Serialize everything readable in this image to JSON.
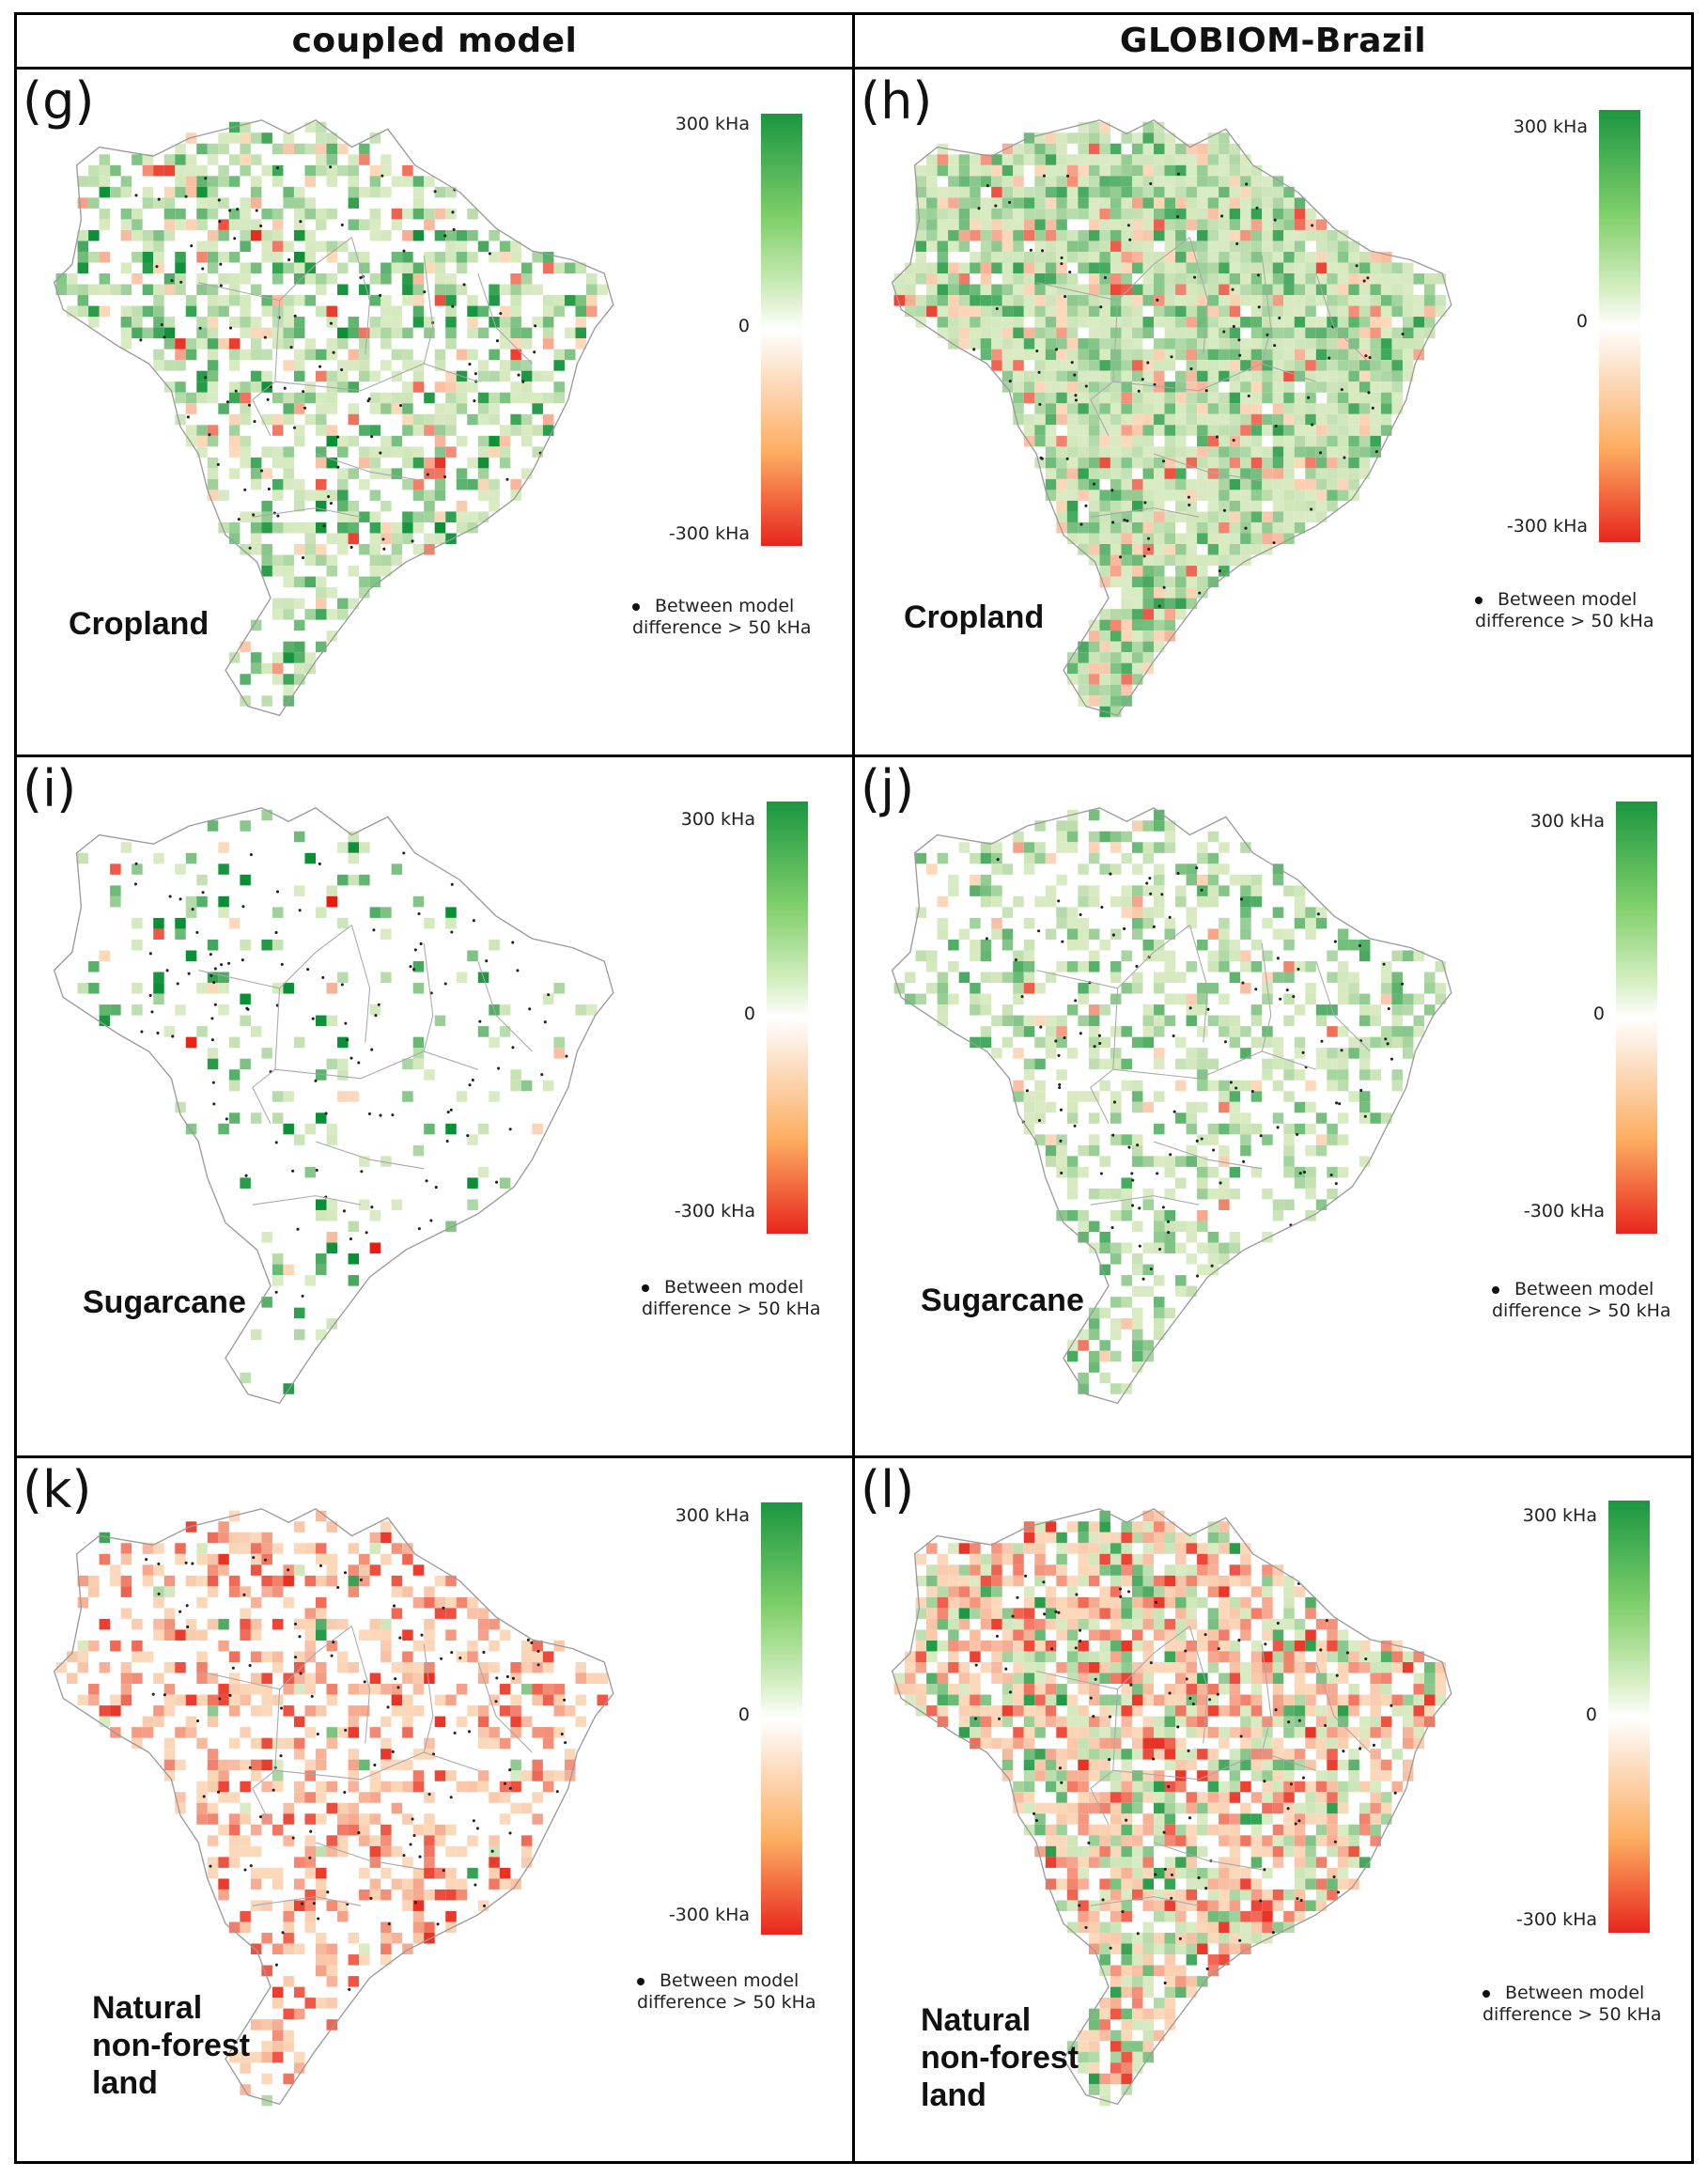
{
  "columns": [
    "coupled model",
    "GLOBIOM-Brazil"
  ],
  "colorbar": {
    "max_label": "300 kHa",
    "mid_label": "0",
    "min_label": "-300 kHa",
    "colors": [
      "#1a9641",
      "#ffffff",
      "#e8261e"
    ]
  },
  "legend": {
    "line1": "Between model",
    "line2": "difference > 50 kHa"
  },
  "rows": [
    {
      "title": [
        "Cropland"
      ],
      "panels": [
        {
          "id": "(g)",
          "column": "coupled model"
        },
        {
          "id": "(h)",
          "column": "GLOBIOM-Brazil"
        }
      ]
    },
    {
      "title": [
        "Sugarcane"
      ],
      "panels": [
        {
          "id": "(i)",
          "column": "coupled model"
        },
        {
          "id": "(j)",
          "column": "GLOBIOM-Brazil"
        }
      ]
    },
    {
      "title": [
        "Natural",
        "non-forest",
        "land"
      ],
      "panels": [
        {
          "id": "(k)",
          "column": "coupled model"
        },
        {
          "id": "(l)",
          "column": "GLOBIOM-Brazil"
        }
      ]
    }
  ]
}
